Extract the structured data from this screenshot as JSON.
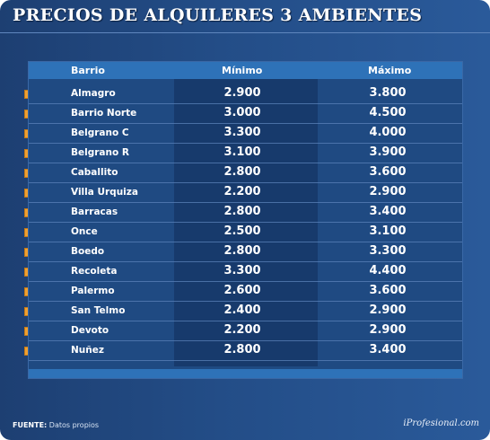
{
  "title": "PRECIOS DE ALQUILERES 3 AMBIENTES",
  "chart_data": {
    "type": "table",
    "columns": [
      "Barrio",
      "Mínimo",
      "Máximo"
    ],
    "rows": [
      {
        "barrio": "Almagro",
        "minimo": "2.900",
        "maximo": "3.800"
      },
      {
        "barrio": "Barrio Norte",
        "minimo": "3.000",
        "maximo": "4.500"
      },
      {
        "barrio": "Belgrano C",
        "minimo": "3.300",
        "maximo": "4.000"
      },
      {
        "barrio": "Belgrano R",
        "minimo": "3.100",
        "maximo": "3.900"
      },
      {
        "barrio": "Caballito",
        "minimo": "2.800",
        "maximo": "3.600"
      },
      {
        "barrio": "Villa Urquiza",
        "minimo": "2.200",
        "maximo": "2.900"
      },
      {
        "barrio": "Barracas",
        "minimo": "2.800",
        "maximo": "3.400"
      },
      {
        "barrio": "Once",
        "minimo": "2.500",
        "maximo": "3.100"
      },
      {
        "barrio": "Boedo",
        "minimo": "2.800",
        "maximo": "3.300"
      },
      {
        "barrio": "Recoleta",
        "minimo": "3.300",
        "maximo": "4.400"
      },
      {
        "barrio": "Palermo",
        "minimo": "2.600",
        "maximo": "3.600"
      },
      {
        "barrio": "San Telmo",
        "minimo": "2.400",
        "maximo": "2.900"
      },
      {
        "barrio": "Devoto",
        "minimo": "2.200",
        "maximo": "2.900"
      },
      {
        "barrio": "Nuñez",
        "minimo": "2.800",
        "maximo": "3.400"
      }
    ]
  },
  "source": {
    "label": "FUENTE:",
    "text": "Datos propios"
  },
  "brand": "iProfesional.com",
  "watermark": "iProfesional.com",
  "colors": {
    "background": "#234d87",
    "header": "#2e72b8",
    "min_column": "#173a6c",
    "bullet": "#f0a030"
  }
}
